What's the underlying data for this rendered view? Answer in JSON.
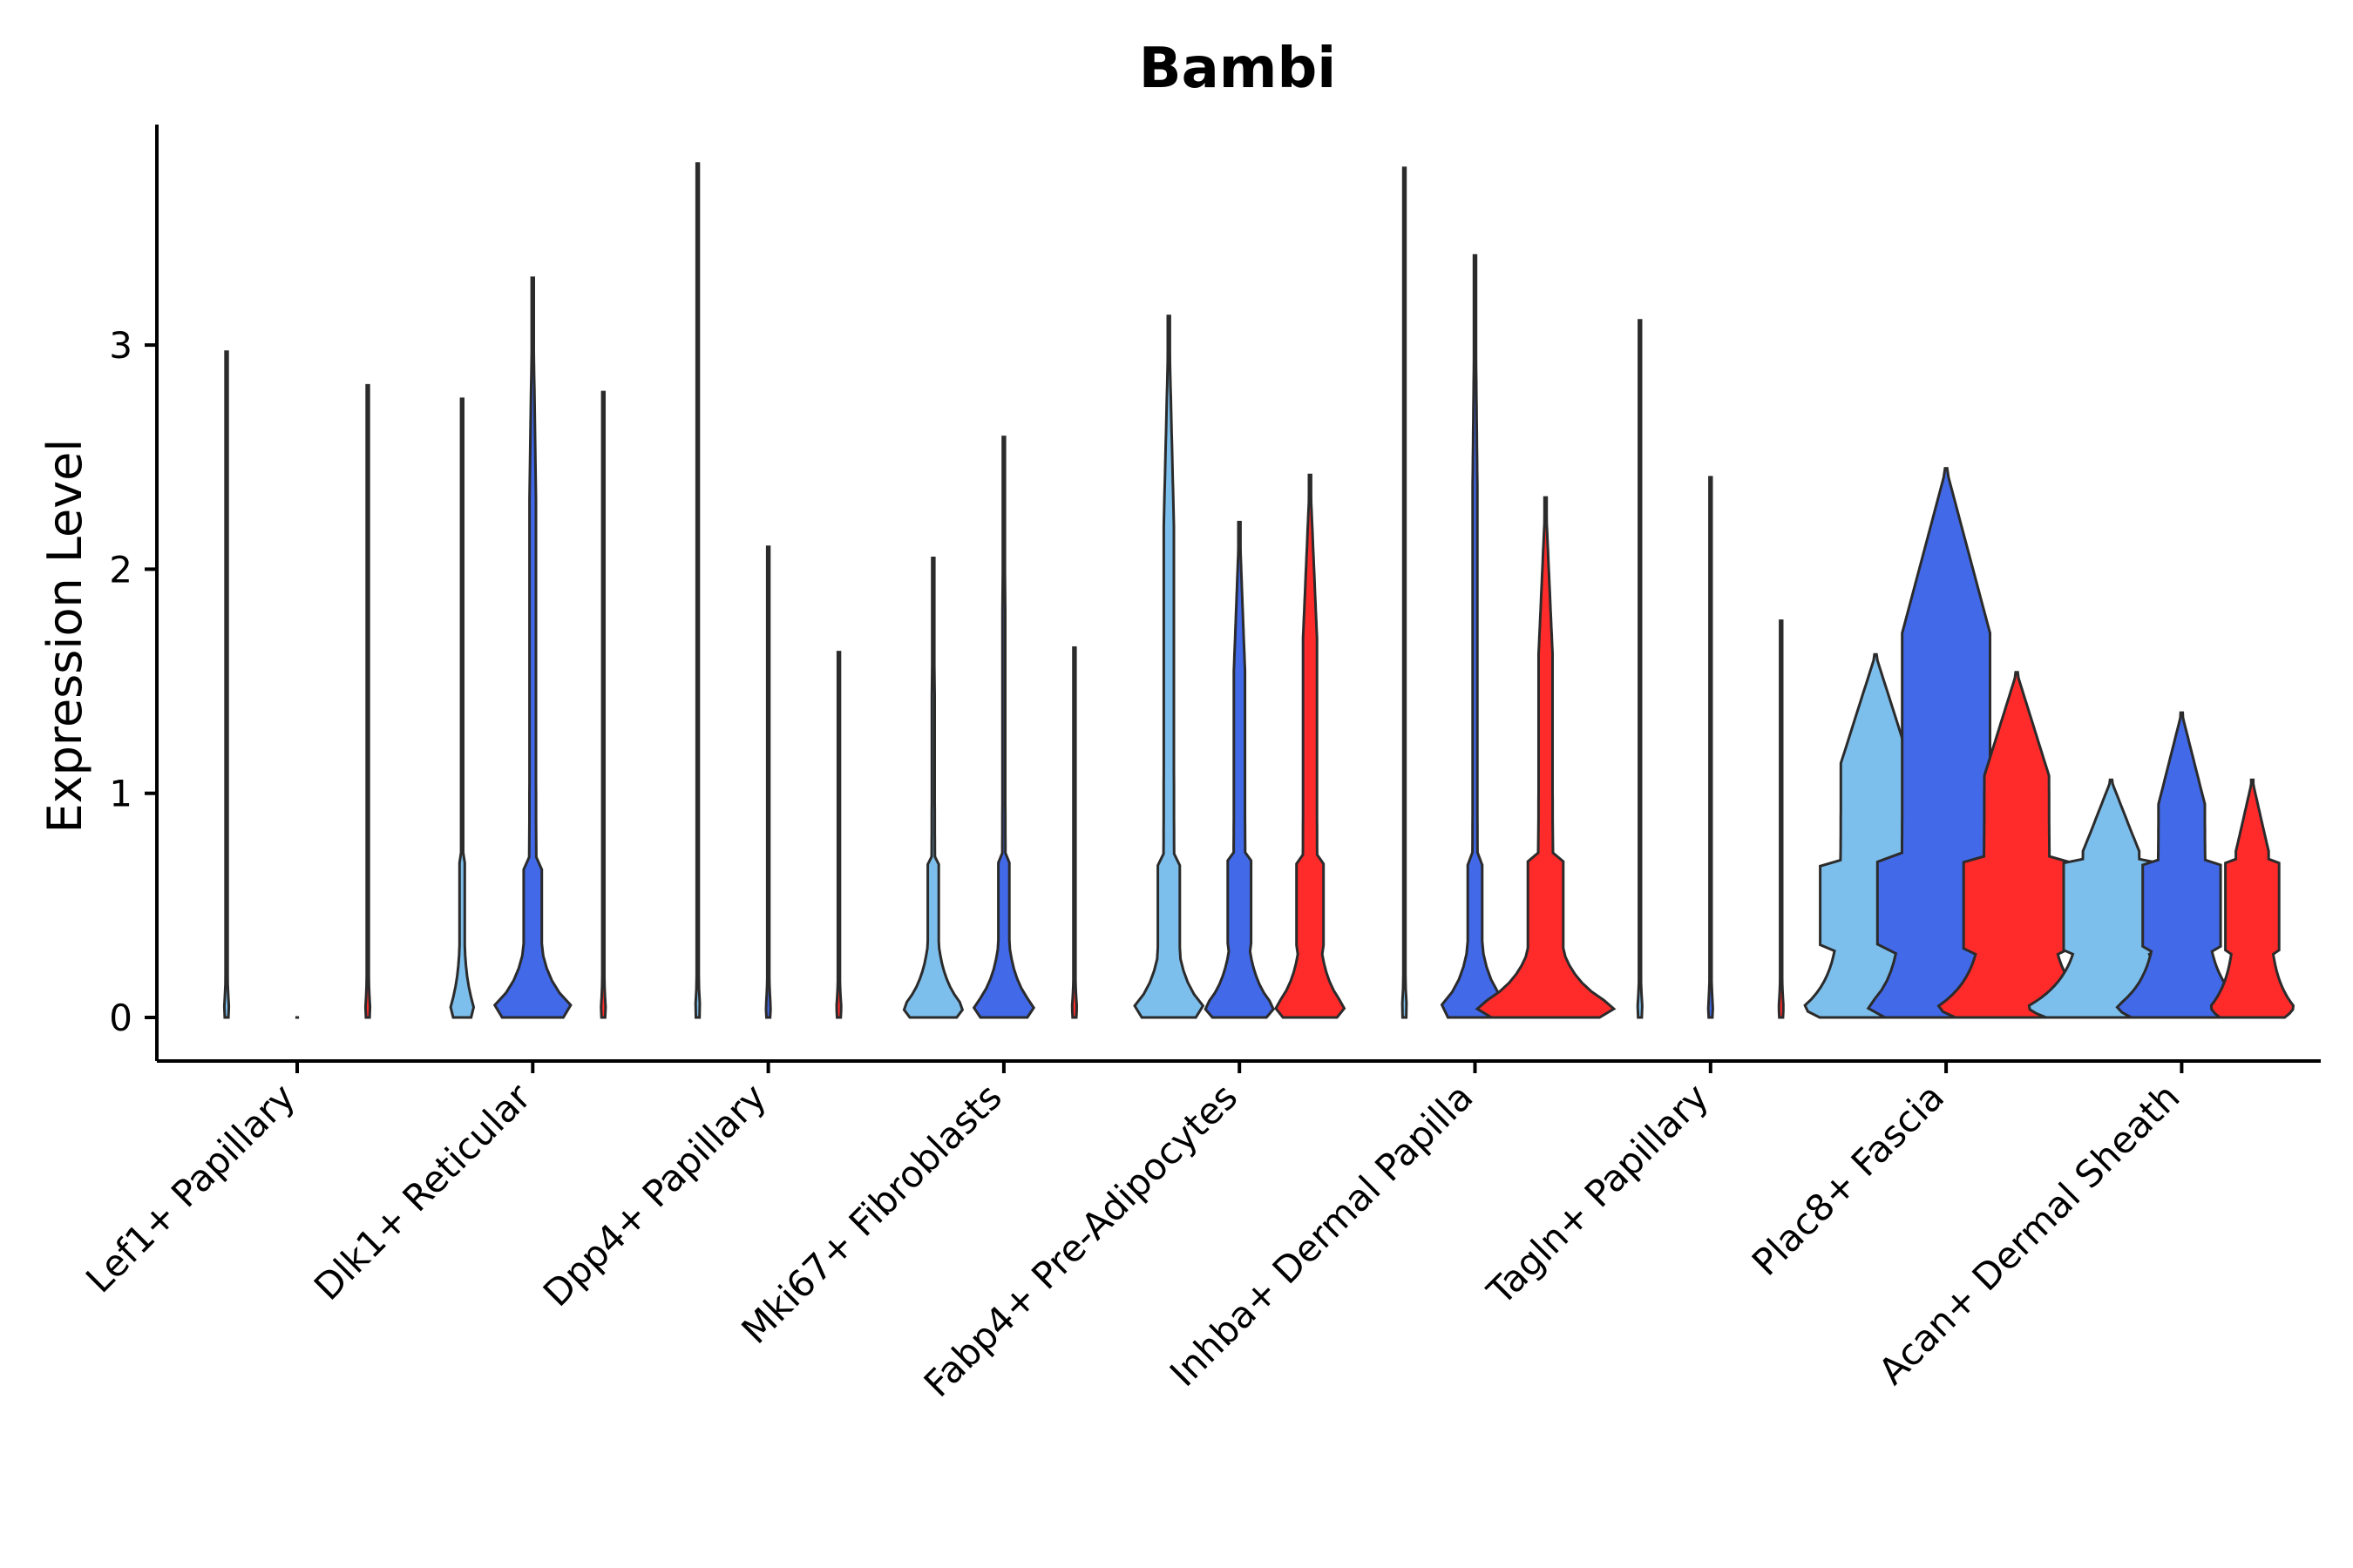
{
  "chart_data": {
    "type": "violin",
    "title": "Bambi",
    "xlabel": "",
    "ylabel": "Expression Level",
    "ylim": [
      -0.19,
      4.0
    ],
    "yticks": [
      0,
      1,
      2,
      3
    ],
    "grid": false,
    "legend": "none",
    "categories": [
      "Lef1+ Papillary",
      "Dlk1+ Reticular",
      "Dpp4+ Papillary",
      "Mki67+ Fibroblasts",
      "Fabp4+ Pre-Adipocytes",
      "Inhba+ Dermal Papilla",
      "Tagln+ Papillary",
      "Plac8+ Fascia",
      "Acan+ Dermal Sheath"
    ],
    "series": [
      {
        "name": "light-blue",
        "color": "#7dbfec",
        "max": [
          2.97,
          2.76,
          3.81,
          2.05,
          3.13,
          3.79,
          3.11,
          1.62,
          1.06
        ],
        "base_width": [
          0.01,
          0.05,
          0.01,
          0.13,
          0.15,
          0.01,
          0.01,
          0.31,
          0.36
        ],
        "mid_width": [
          0.0,
          0.004,
          0.0,
          0.006,
          0.022,
          0.0,
          0.0,
          0.15,
          0.12
        ]
      },
      {
        "name": "blue",
        "color": "#4169e8",
        "max": [
          0.0,
          3.3,
          2.1,
          2.59,
          2.21,
          3.4,
          2.41,
          2.45,
          1.36
        ],
        "base_width": [
          0.01,
          0.17,
          0.01,
          0.13,
          0.15,
          0.15,
          0.01,
          0.34,
          0.28
        ],
        "mid_width": [
          0.0,
          0.014,
          0.0,
          0.006,
          0.024,
          0.01,
          0.0,
          0.19,
          0.1
        ]
      },
      {
        "name": "red",
        "color": "#ff2b2b",
        "max": [
          2.82,
          2.79,
          1.63,
          1.65,
          2.42,
          2.32,
          1.77,
          1.54,
          1.06
        ],
        "base_width": [
          0.01,
          0.01,
          0.01,
          0.01,
          0.15,
          0.3,
          0.01,
          0.34,
          0.18
        ],
        "mid_width": [
          0.0,
          0.0,
          0.0,
          0.0,
          0.03,
          0.03,
          0.0,
          0.14,
          0.07
        ]
      }
    ]
  }
}
